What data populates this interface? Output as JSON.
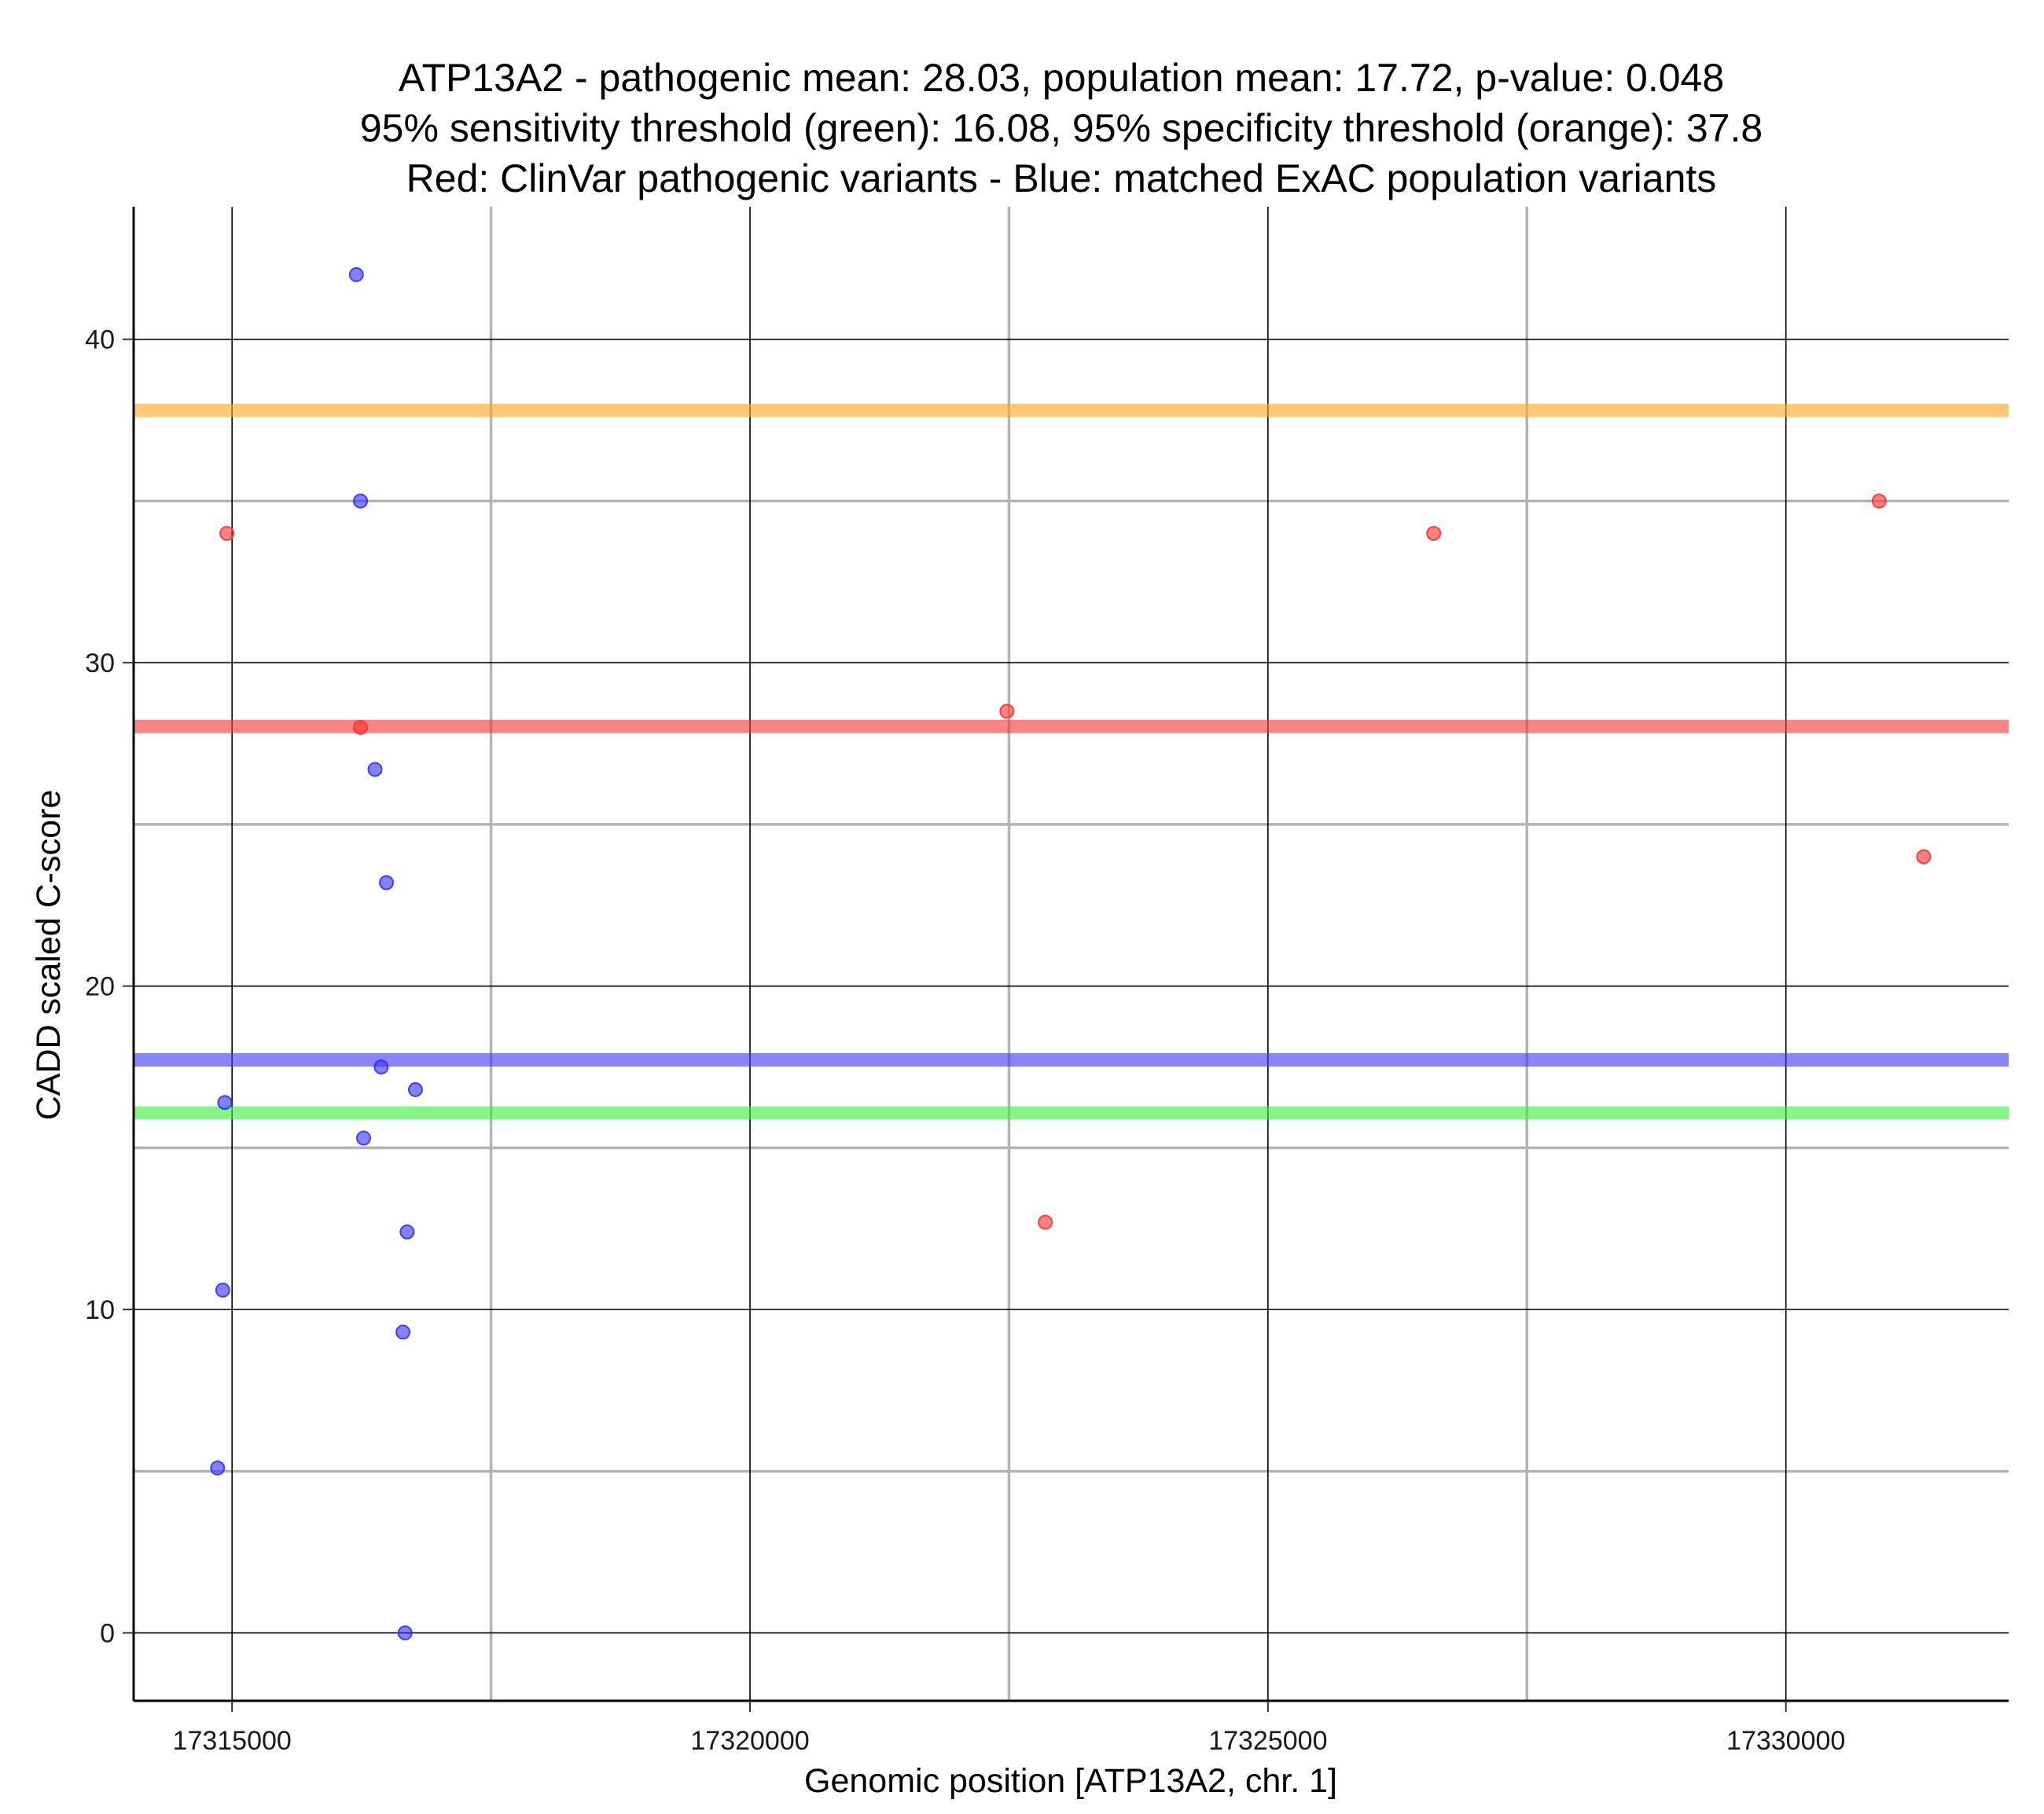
{
  "chart_data": {
    "type": "scatter",
    "title_lines": [
      "ATP13A2 - pathogenic mean: 28.03, population mean: 17.72, p-value: 0.048",
      "95% sensitivity threshold (green): 16.08, 95% specificity threshold (orange): 37.8",
      "Red: ClinVar pathogenic variants - Blue: matched ExAC population variants"
    ],
    "xlabel": "Genomic position [ATP13A2, chr. 1]",
    "ylabel": "CADD scaled C-score",
    "xlim": [
      17314050,
      17332150
    ],
    "ylim": [
      -2.1,
      44.1
    ],
    "x_ticks": [
      {
        "value": 17315000,
        "label": "17315000"
      },
      {
        "value": 17320000,
        "label": "17320000"
      },
      {
        "value": 17325000,
        "label": "17325000"
      },
      {
        "value": 17330000,
        "label": "17330000"
      }
    ],
    "x_minor_gridlines": [
      17317500,
      17322500,
      17327500
    ],
    "y_ticks": [
      {
        "value": 0,
        "label": "0"
      },
      {
        "value": 10,
        "label": "10"
      },
      {
        "value": 20,
        "label": "20"
      },
      {
        "value": 30,
        "label": "30"
      },
      {
        "value": 40,
        "label": "40"
      }
    ],
    "y_minor_gridlines": [
      5,
      15,
      25,
      35
    ],
    "grid": true,
    "reference_lines": [
      {
        "name": "specificity",
        "y": 37.8,
        "color": "#FFA629"
      },
      {
        "name": "pathogenic-mean",
        "y": 28.03,
        "color": "#F23A3A"
      },
      {
        "name": "population-mean",
        "y": 17.72,
        "color": "#3C3CEE"
      },
      {
        "name": "sensitivity",
        "y": 16.08,
        "color": "#3CEE3C"
      }
    ],
    "series": [
      {
        "color": "#FF3030",
        "x": [
          17314950,
          17316240,
          17322480,
          17322850,
          17326600,
          17330900,
          17331330
        ],
        "y": [
          34.0,
          28.0,
          28.5,
          12.7,
          34.0,
          35.0,
          24.0
        ]
      },
      {
        "color": "#3030FF",
        "x": [
          17314860,
          17314910,
          17314930,
          17316200,
          17316240,
          17316270,
          17316380,
          17316440,
          17316490,
          17316650,
          17316670,
          17316690,
          17316770
        ],
        "y": [
          5.1,
          10.6,
          16.4,
          42.0,
          35.0,
          15.3,
          26.7,
          17.5,
          23.2,
          9.3,
          0.0,
          12.4,
          16.8
        ]
      }
    ]
  }
}
